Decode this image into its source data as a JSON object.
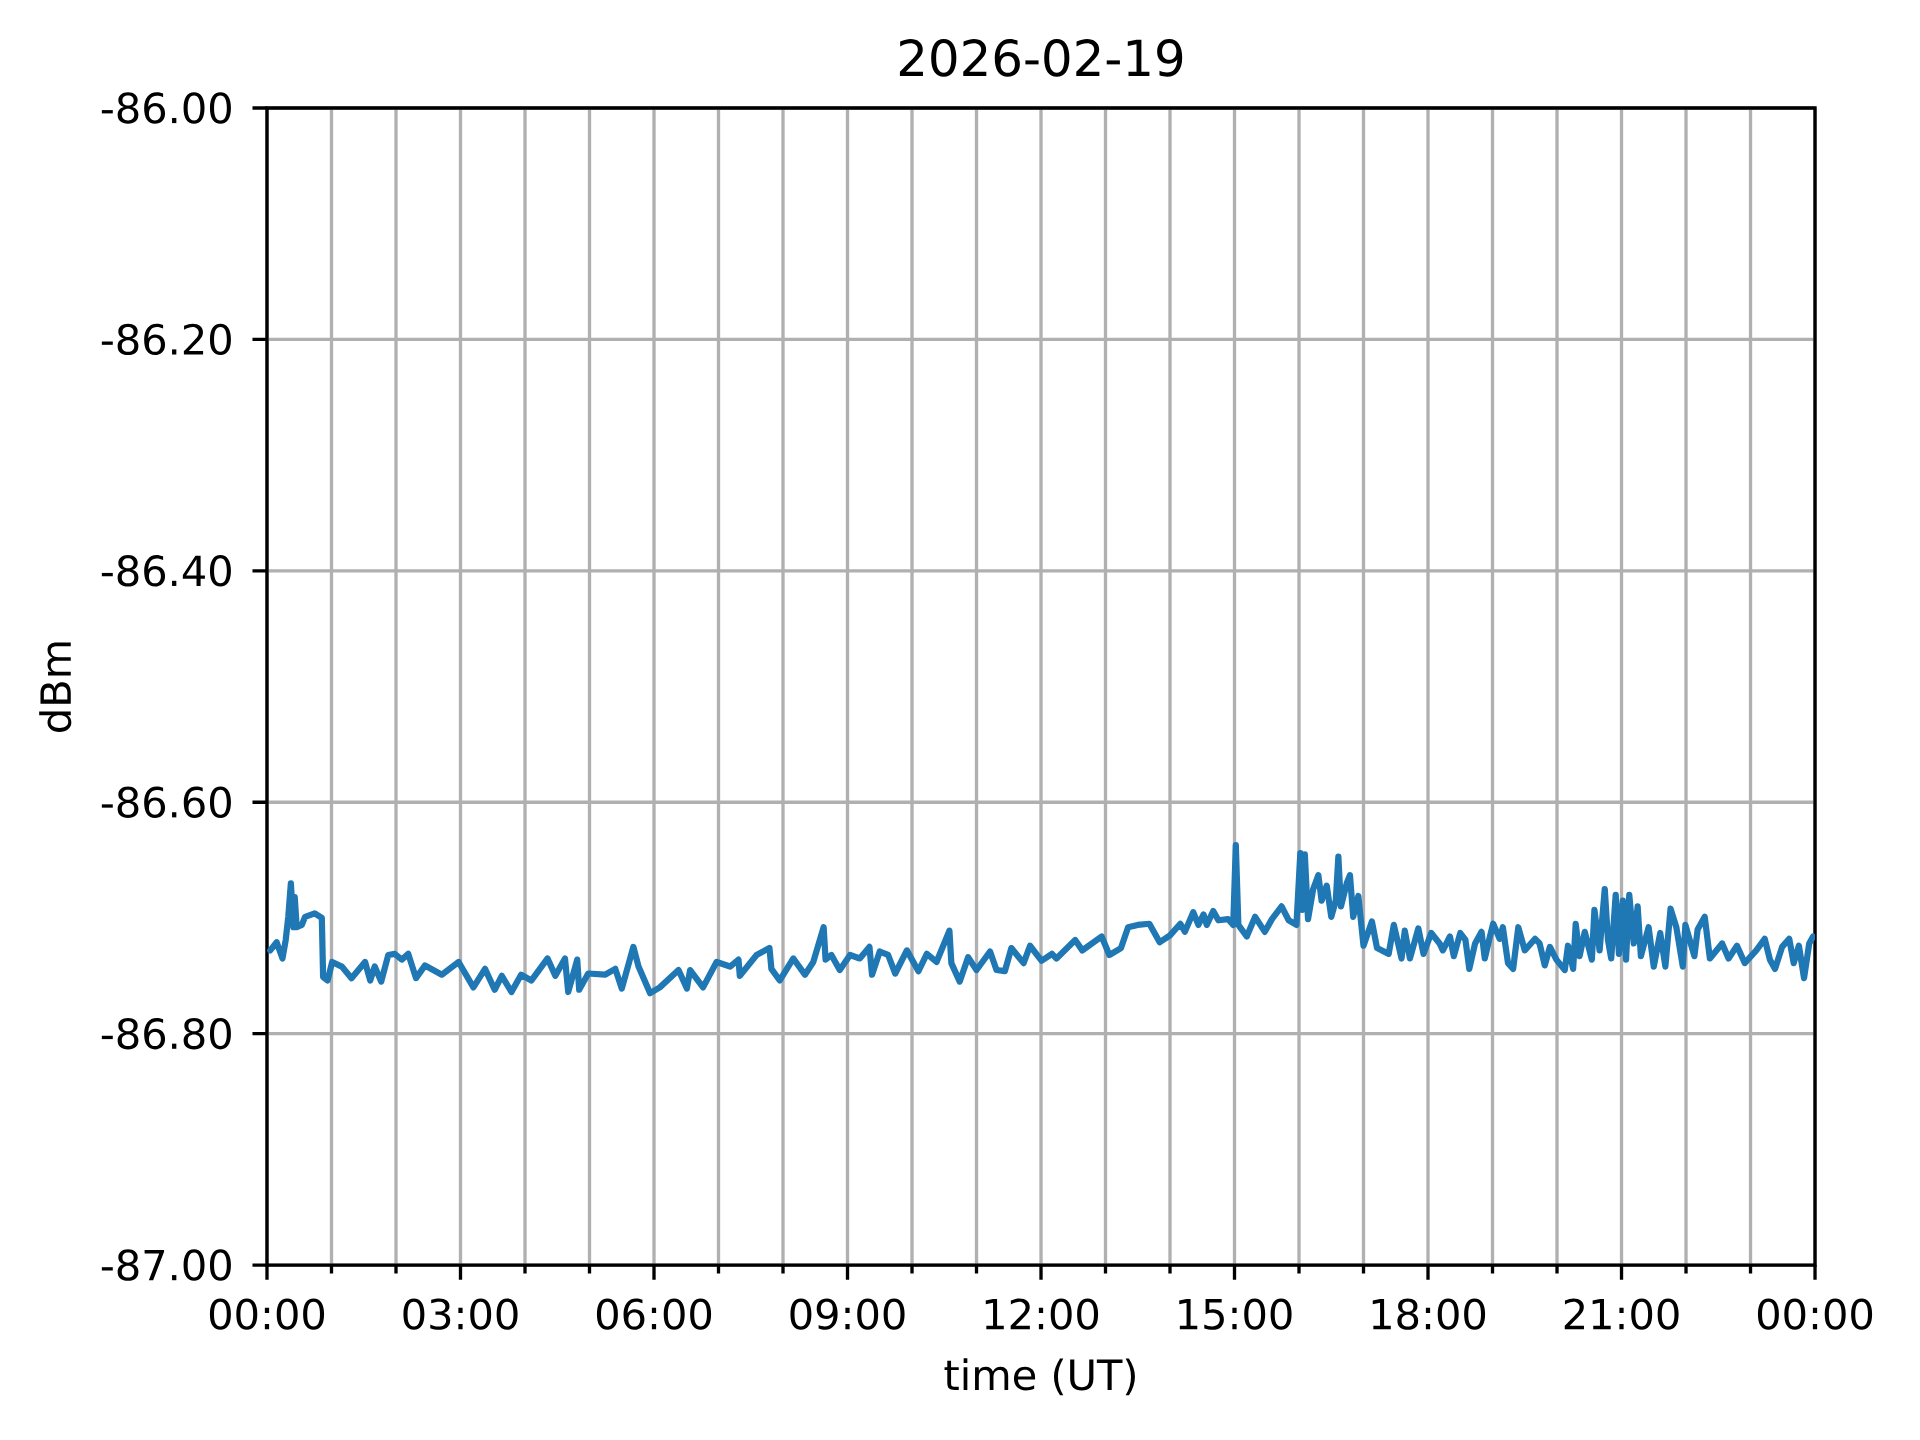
{
  "chart_data": {
    "type": "line",
    "title": "2026-02-19",
    "xlabel": "time (UT)",
    "ylabel": "dBm",
    "x": [
      0.05,
      0.15,
      0.24,
      0.29,
      0.33,
      0.37,
      0.41,
      0.43,
      0.46,
      0.54,
      0.59,
      0.74,
      0.85,
      0.87,
      0.94,
      1.01,
      1.16,
      1.31,
      1.52,
      1.6,
      1.67,
      1.77,
      1.88,
      1.98,
      2.09,
      2.19,
      2.31,
      2.45,
      2.71,
      2.97,
      3.2,
      3.38,
      3.53,
      3.64,
      3.79,
      3.94,
      4.1,
      4.35,
      4.47,
      4.62,
      4.67,
      4.81,
      4.84,
      4.98,
      5.24,
      5.4,
      5.5,
      5.68,
      5.76,
      5.94,
      6.09,
      6.38,
      6.51,
      6.56,
      6.76,
      6.97,
      7.18,
      7.31,
      7.33,
      7.59,
      7.79,
      7.82,
      7.95,
      8.16,
      8.34,
      8.47,
      8.63,
      8.66,
      8.75,
      8.88,
      9.04,
      9.19,
      9.34,
      9.38,
      9.5,
      9.63,
      9.74,
      9.92,
      10.1,
      10.23,
      10.38,
      10.58,
      10.61,
      10.74,
      10.87,
      11.0,
      11.21,
      11.31,
      11.44,
      11.54,
      11.73,
      11.83,
      12.01,
      12.17,
      12.24,
      12.53,
      12.64,
      12.94,
      13.06,
      13.24,
      13.35,
      13.5,
      13.68,
      13.84,
      14.0,
      14.16,
      14.23,
      14.36,
      14.44,
      14.52,
      14.57,
      14.67,
      14.75,
      14.9,
      14.98,
      15.02,
      15.06,
      15.19,
      15.32,
      15.47,
      15.58,
      15.73,
      15.84,
      15.96,
      16.02,
      16.05,
      16.09,
      16.14,
      16.22,
      16.3,
      16.35,
      16.43,
      16.5,
      16.57,
      16.61,
      16.65,
      16.74,
      16.79,
      16.84,
      16.92,
      17.0,
      17.13,
      17.21,
      17.39,
      17.47,
      17.59,
      17.64,
      17.72,
      17.85,
      17.93,
      18.05,
      18.18,
      18.23,
      18.34,
      18.4,
      18.5,
      18.58,
      18.64,
      18.73,
      18.83,
      18.88,
      18.96,
      19.01,
      19.11,
      19.16,
      19.24,
      19.32,
      19.4,
      19.5,
      19.66,
      19.73,
      19.81,
      19.89,
      19.99,
      20.12,
      20.17,
      20.25,
      20.29,
      20.35,
      20.43,
      20.54,
      20.58,
      20.66,
      20.74,
      20.79,
      20.84,
      20.91,
      20.96,
      21.02,
      21.07,
      21.12,
      21.19,
      21.25,
      21.3,
      21.42,
      21.5,
      21.6,
      21.68,
      21.76,
      21.85,
      21.95,
      21.99,
      22.13,
      22.18,
      22.29,
      22.37,
      22.56,
      22.66,
      22.79,
      22.91,
      23.09,
      23.22,
      23.3,
      23.38,
      23.49,
      23.6,
      23.67,
      23.75,
      23.83,
      23.91,
      23.97
    ],
    "values": [
      -86.728,
      -86.721,
      -86.735,
      -86.719,
      -86.699,
      -86.67,
      -86.708,
      -86.682,
      -86.708,
      -86.706,
      -86.699,
      -86.696,
      -86.7,
      -86.751,
      -86.754,
      -86.738,
      -86.742,
      -86.752,
      -86.738,
      -86.754,
      -86.742,
      -86.755,
      -86.732,
      -86.731,
      -86.736,
      -86.731,
      -86.752,
      -86.741,
      -86.749,
      -86.738,
      -86.76,
      -86.744,
      -86.762,
      -86.75,
      -86.764,
      -86.749,
      -86.754,
      -86.735,
      -86.75,
      -86.735,
      -86.764,
      -86.736,
      -86.762,
      -86.748,
      -86.749,
      -86.744,
      -86.761,
      -86.725,
      -86.742,
      -86.765,
      -86.76,
      -86.745,
      -86.761,
      -86.745,
      -86.76,
      -86.738,
      -86.742,
      -86.736,
      -86.75,
      -86.732,
      -86.726,
      -86.744,
      -86.754,
      -86.735,
      -86.749,
      -86.738,
      -86.708,
      -86.736,
      -86.732,
      -86.745,
      -86.732,
      -86.735,
      -86.725,
      -86.749,
      -86.729,
      -86.732,
      -86.748,
      -86.728,
      -86.746,
      -86.731,
      -86.738,
      -86.711,
      -86.739,
      -86.755,
      -86.734,
      -86.745,
      -86.729,
      -86.745,
      -86.746,
      -86.726,
      -86.739,
      -86.724,
      -86.737,
      -86.731,
      -86.735,
      -86.719,
      -86.728,
      -86.716,
      -86.732,
      -86.726,
      -86.708,
      -86.706,
      -86.705,
      -86.721,
      -86.715,
      -86.705,
      -86.712,
      -86.695,
      -86.706,
      -86.697,
      -86.706,
      -86.694,
      -86.702,
      -86.701,
      -86.706,
      -86.637,
      -86.706,
      -86.716,
      -86.699,
      -86.712,
      -86.701,
      -86.69,
      -86.702,
      -86.706,
      -86.644,
      -86.693,
      -86.645,
      -86.701,
      -86.675,
      -86.663,
      -86.685,
      -86.672,
      -86.699,
      -86.685,
      -86.647,
      -86.69,
      -86.67,
      -86.663,
      -86.699,
      -86.681,
      -86.724,
      -86.703,
      -86.726,
      -86.731,
      -86.706,
      -86.735,
      -86.711,
      -86.735,
      -86.709,
      -86.731,
      -86.713,
      -86.722,
      -86.728,
      -86.716,
      -86.733,
      -86.713,
      -86.719,
      -86.744,
      -86.722,
      -86.712,
      -86.735,
      -86.716,
      -86.705,
      -86.718,
      -86.708,
      -86.739,
      -86.744,
      -86.708,
      -86.728,
      -86.718,
      -86.722,
      -86.741,
      -86.725,
      -86.736,
      -86.745,
      -86.724,
      -86.744,
      -86.705,
      -86.733,
      -86.712,
      -86.736,
      -86.693,
      -86.728,
      -86.675,
      -86.719,
      -86.735,
      -86.68,
      -86.731,
      -86.685,
      -86.736,
      -86.68,
      -86.722,
      -86.69,
      -86.733,
      -86.708,
      -86.742,
      -86.713,
      -86.742,
      -86.692,
      -86.708,
      -86.742,
      -86.706,
      -86.733,
      -86.71,
      -86.699,
      -86.735,
      -86.722,
      -86.735,
      -86.724,
      -86.739,
      -86.728,
      -86.718,
      -86.736,
      -86.744,
      -86.725,
      -86.718,
      -86.739,
      -86.724,
      -86.752,
      -86.722,
      -86.716
    ],
    "color": "#1f77b4",
    "xlim": [
      0,
      24
    ],
    "xticks": [
      {
        "value": 0,
        "label": "00:00"
      },
      {
        "value": 1,
        "label": null
      },
      {
        "value": 2,
        "label": null
      },
      {
        "value": 3,
        "label": "03:00"
      },
      {
        "value": 4,
        "label": null
      },
      {
        "value": 5,
        "label": null
      },
      {
        "value": 6,
        "label": "06:00"
      },
      {
        "value": 7,
        "label": null
      },
      {
        "value": 8,
        "label": null
      },
      {
        "value": 9,
        "label": "09:00"
      },
      {
        "value": 10,
        "label": null
      },
      {
        "value": 11,
        "label": null
      },
      {
        "value": 12,
        "label": "12:00"
      },
      {
        "value": 13,
        "label": null
      },
      {
        "value": 14,
        "label": null
      },
      {
        "value": 15,
        "label": "15:00"
      },
      {
        "value": 16,
        "label": null
      },
      {
        "value": 17,
        "label": null
      },
      {
        "value": 18,
        "label": "18:00"
      },
      {
        "value": 19,
        "label": null
      },
      {
        "value": 20,
        "label": null
      },
      {
        "value": 21,
        "label": "21:00"
      },
      {
        "value": 22,
        "label": null
      },
      {
        "value": 23,
        "label": null
      },
      {
        "value": 24,
        "label": "00:00"
      }
    ],
    "ylim": [
      -87,
      -86
    ],
    "yticks": [
      {
        "value": -87,
        "label": "-87.00"
      },
      {
        "value": -86.8,
        "label": "-86.80"
      },
      {
        "value": -86.6,
        "label": "-86.60"
      },
      {
        "value": -86.4,
        "label": "-86.40"
      },
      {
        "value": -86.2,
        "label": "-86.20"
      },
      {
        "value": -86,
        "label": "-86.00"
      }
    ],
    "grid": true
  }
}
